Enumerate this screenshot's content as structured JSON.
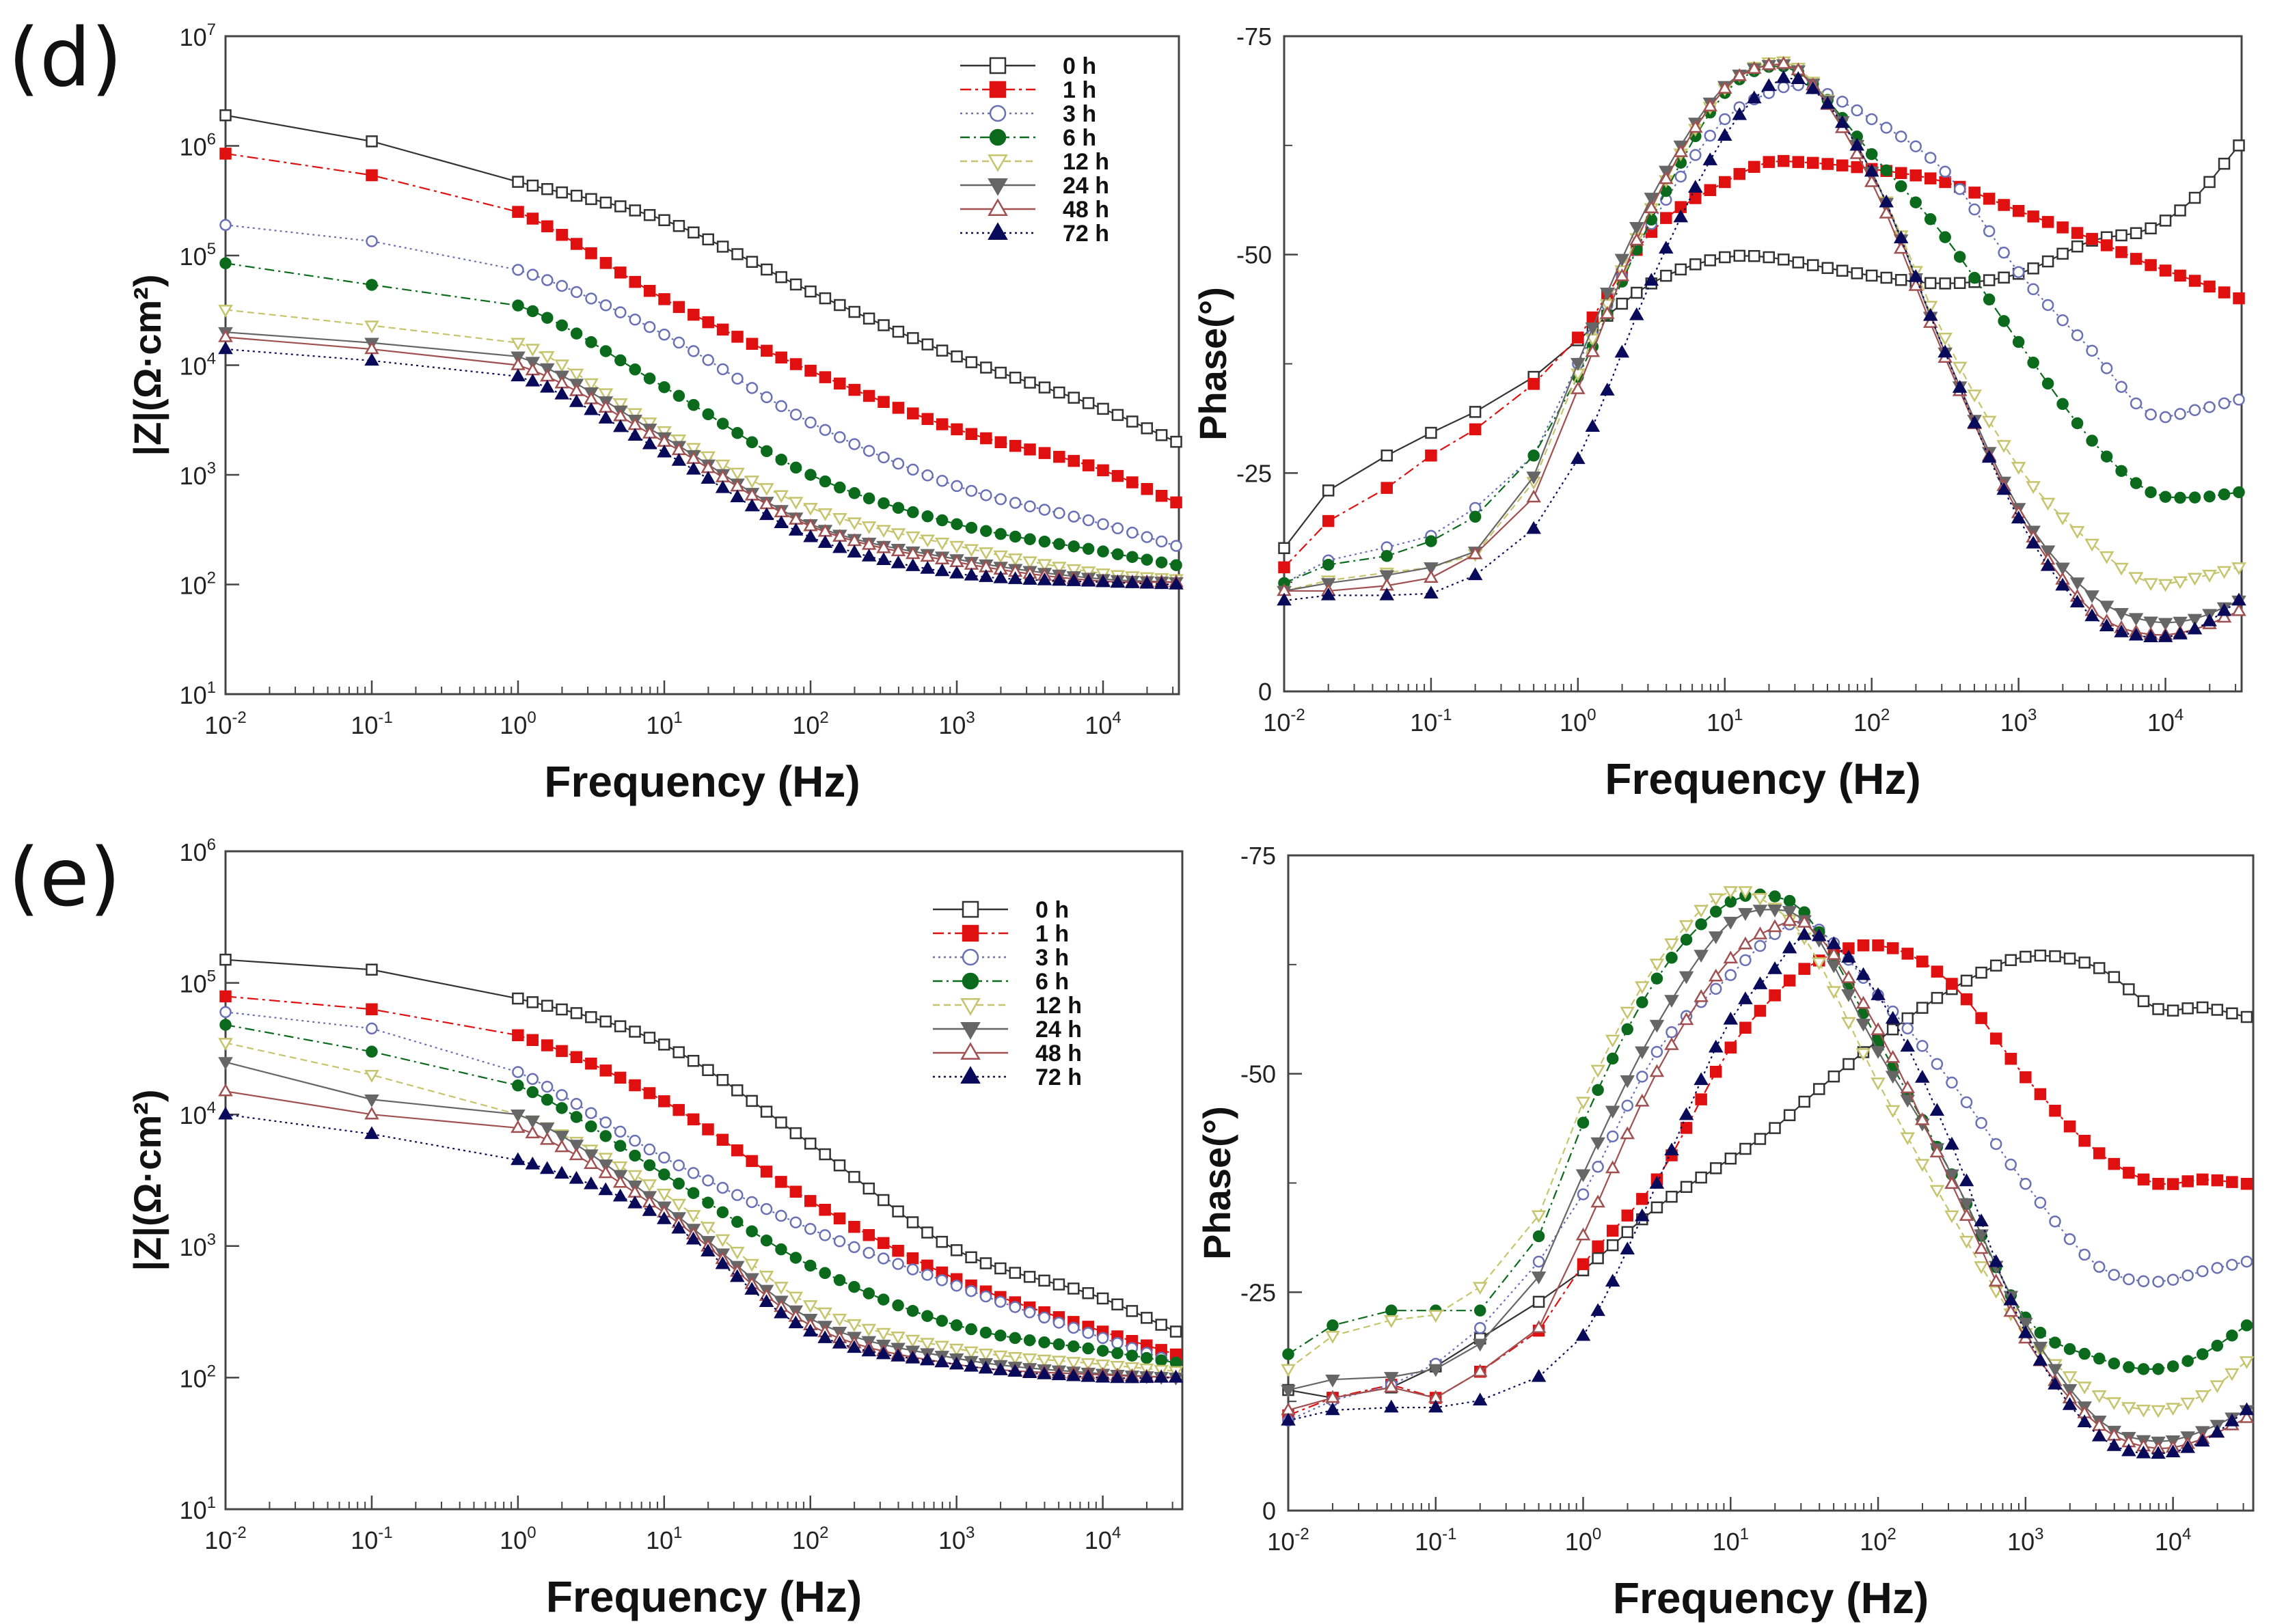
{
  "panel_labels": [
    "(d)",
    "(e)"
  ],
  "chart_data": [
    {
      "panel": "(d)",
      "type": "line",
      "title": "",
      "xlabel": "Frequency (Hz)",
      "ylabel": "|Z|(Ω·cm²)",
      "xscale": "log",
      "yscale": "log",
      "xlim": [
        0.01,
        33000
      ],
      "ylim": [
        10,
        10000000
      ],
      "x_ticks": [
        0.01,
        0.1,
        1,
        10,
        100,
        1000,
        10000
      ],
      "y_ticks": [
        10,
        100,
        1000,
        10000,
        100000,
        1000000,
        10000000
      ],
      "legend_position": "top-right",
      "grid": false,
      "x": [
        0.01,
        0.1,
        1,
        10,
        100,
        1000,
        10000,
        31623
      ],
      "series": [
        {
          "name": "0 h",
          "color": "#333333",
          "values": [
            1900000.0,
            1100000.0,
            470000.0,
            210000.0,
            47000.0,
            12000.0,
            4000.0,
            2000.0
          ]
        },
        {
          "name": "1 h",
          "color": "#e01010",
          "values": [
            850000.0,
            540000.0,
            250000.0,
            40000.0,
            8900.0,
            2600.0,
            1100.0,
            560
          ]
        },
        {
          "name": "3 h",
          "color": "#6a70b4",
          "values": [
            190000.0,
            135000.0,
            74000.0,
            19000.0,
            3000.0,
            790,
            355,
            225
          ]
        },
        {
          "name": "6 h",
          "color": "#0b6a1c",
          "values": [
            85000.0,
            54000.0,
            35000.0,
            6300.0,
            1000.0,
            355,
            200,
            150
          ]
        },
        {
          "name": "12 h",
          "color": "#c6c46c",
          "values": [
            32000.0,
            23000.0,
            16000.0,
            2500.0,
            500,
            225,
            126,
            112
          ]
        },
        {
          "name": "24 h",
          "color": "#666666",
          "values": [
            20000.0,
            16000.0,
            12000.0,
            2200.0,
            355,
            170,
            112,
            105
          ]
        },
        {
          "name": "48 h",
          "color": "#a05050",
          "values": [
            18000.0,
            14000.0,
            10000.0,
            2000.0,
            340,
            160,
            107,
            105
          ]
        },
        {
          "name": "72 h",
          "color": "#0a0a5a",
          "values": [
            14000.0,
            11000.0,
            7900.0,
            1600.0,
            270,
            126,
            105,
            100
          ]
        }
      ]
    },
    {
      "panel": "(d)",
      "type": "line",
      "title": "",
      "xlabel": "Frequency (Hz)",
      "ylabel": "Phase(°)",
      "xscale": "log",
      "yscale": "linear",
      "xlim": [
        0.01,
        33000
      ],
      "ylim": [
        0,
        -75
      ],
      "x_ticks": [
        0.01,
        0.1,
        1,
        10,
        100,
        1000,
        10000
      ],
      "y_ticks": [
        0,
        -25,
        -50,
        -75
      ],
      "grid": false,
      "x": [
        0.01,
        0.02,
        0.05,
        0.1,
        0.2,
        0.5,
        1,
        3.16,
        10,
        20,
        31.6,
        100,
        316,
        1000,
        3162,
        7943,
        15849,
        31623
      ],
      "series": [
        {
          "name": "0 h",
          "color": "#333333",
          "values": [
            -16.4,
            -23,
            -27,
            -29.6,
            -32,
            -36,
            -40.2,
            -46.7,
            -49.7,
            -49.7,
            -49.1,
            -47.6,
            -46.7,
            -47.8,
            -51.6,
            -53,
            -56.5,
            -62.5
          ]
        },
        {
          "name": "1 h",
          "color": "#e01010",
          "values": [
            -14.2,
            -19.5,
            -23.3,
            -27,
            -30,
            -35.2,
            -40.5,
            -52.6,
            -58.3,
            -60.6,
            -60.6,
            -59.8,
            -58.3,
            -55,
            -51.8,
            -48.8,
            -47,
            -45
          ]
        },
        {
          "name": "3 h",
          "color": "#6a70b4",
          "values": [
            -12.4,
            -15,
            -16.5,
            -17.8,
            -21,
            -27,
            -37.5,
            -53.5,
            -65.5,
            -68.5,
            -69.4,
            -65.5,
            -59.5,
            -48,
            -39,
            -31.7,
            -32.2,
            -33.4
          ]
        },
        {
          "name": "6 h",
          "color": "#0b6a1c",
          "values": [
            -12.4,
            -14.5,
            -15.5,
            -17.2,
            -20,
            -27,
            -36,
            -54,
            -68.5,
            -71.5,
            -70.9,
            -61.5,
            -52,
            -40,
            -28.7,
            -22.8,
            -22.2,
            -22.8
          ]
        },
        {
          "name": "12 h",
          "color": "#c6c46c",
          "values": [
            -11.5,
            -12.7,
            -13.6,
            -14.2,
            -15.7,
            -24,
            -36.4,
            -55.3,
            -69,
            -72,
            -71.4,
            -59.5,
            -40.5,
            -25.7,
            -16.9,
            -12.4,
            -13,
            -14.2
          ]
        },
        {
          "name": "24 h",
          "color": "#666666",
          "values": [
            -11.5,
            -12.4,
            -13.3,
            -14.2,
            -16,
            -24.6,
            -37.6,
            -56.5,
            -69.3,
            -71.7,
            -71.1,
            -59.5,
            -38.8,
            -21,
            -11,
            -8,
            -8.3,
            -10.4
          ]
        },
        {
          "name": "48 h",
          "color": "#a05050",
          "values": [
            -11.5,
            -11.5,
            -12.1,
            -13,
            -15.7,
            -22.2,
            -34.6,
            -55.3,
            -69,
            -71.7,
            -71.1,
            -58.3,
            -38.2,
            -20.4,
            -9.2,
            -6.5,
            -7.1,
            -9.2
          ]
        },
        {
          "name": "72 h",
          "color": "#0a0a5a",
          "values": [
            -10.4,
            -11,
            -11,
            -11.2,
            -13.3,
            -18.6,
            -26.6,
            -47,
            -63.6,
            -69.3,
            -70.1,
            -59.5,
            -38.8,
            -19.8,
            -8.6,
            -6.2,
            -7.1,
            -10.4
          ]
        }
      ]
    },
    {
      "panel": "(e)",
      "type": "line",
      "title": "",
      "xlabel": "Frequency (Hz)",
      "ylabel": "|Z|(Ω·cm²)",
      "xscale": "log",
      "yscale": "log",
      "xlim": [
        0.01,
        35000
      ],
      "ylim": [
        10,
        1000000
      ],
      "x_ticks": [
        0.01,
        0.1,
        1,
        10,
        100,
        1000,
        10000
      ],
      "y_ticks": [
        10,
        100,
        1000,
        10000,
        100000,
        1000000
      ],
      "legend_position": "top-right",
      "grid": false,
      "x": [
        0.01,
        0.1,
        1,
        10,
        100,
        1000,
        10000,
        31623
      ],
      "series": [
        {
          "name": "0 h",
          "color": "#333333",
          "values": [
            150000.0,
            126000.0,
            76000.0,
            34000.0,
            6000.0,
            930,
            400,
            224
          ]
        },
        {
          "name": "1 h",
          "color": "#e01010",
          "values": [
            79000.0,
            63000.0,
            40000.0,
            12600.0,
            2200.0,
            560,
            224,
            150
          ]
        },
        {
          "name": "3 h",
          "color": "#6a70b4",
          "values": [
            60000.0,
            45000.0,
            21000.0,
            4700.0,
            1350.0,
            500,
            200,
            130
          ]
        },
        {
          "name": "6 h",
          "color": "#0b6a1c",
          "values": [
            48000.0,
            30000.0,
            16600.0,
            3500.0,
            710,
            250,
            160,
            130
          ]
        },
        {
          "name": "12 h",
          "color": "#c6c46c",
          "values": [
            35000.0,
            20000.0,
            10000.0,
            2500.0,
            355,
            166,
            126,
            112
          ]
        },
        {
          "name": "24 h",
          "color": "#666666",
          "values": [
            25000.0,
            13000.0,
            10000.0,
            2000.0,
            280,
            140,
            107,
            100
          ]
        },
        {
          "name": "48 h",
          "color": "#a05050",
          "values": [
            15000.0,
            10000.0,
            7900.0,
            1800.0,
            250,
            126,
            105,
            100
          ]
        },
        {
          "name": "72 h",
          "color": "#0a0a5a",
          "values": [
            10000.0,
            7100.0,
            4500.0,
            1600.0,
            224,
            126,
            100,
            100
          ]
        }
      ]
    },
    {
      "panel": "(e)",
      "type": "line",
      "title": "",
      "xlabel": "Frequency (Hz)",
      "ylabel": "Phase(°)",
      "xscale": "log",
      "yscale": "linear",
      "xlim": [
        0.01,
        35000
      ],
      "ylim": [
        0,
        -75
      ],
      "x_ticks": [
        0.01,
        0.1,
        1,
        10,
        100,
        1000,
        10000
      ],
      "y_ticks": [
        0,
        -25,
        -50,
        -75
      ],
      "grid": false,
      "x": [
        0.01,
        0.02,
        0.05,
        0.1,
        0.2,
        0.5,
        1,
        3.16,
        10,
        20,
        31.6,
        100,
        316,
        1000,
        3162,
        7943,
        15849,
        31623
      ],
      "series": [
        {
          "name": "0 h",
          "color": "#333333",
          "values": [
            -13.8,
            -12.9,
            -14.1,
            -16.5,
            -19.7,
            -23.9,
            -27.5,
            -34.7,
            -40.3,
            -43.8,
            -46.8,
            -53.8,
            -59.7,
            -63.4,
            -62.1,
            -57.4,
            -57.6,
            -56.5
          ]
        },
        {
          "name": "1 h",
          "color": "#e01010",
          "values": [
            -10.9,
            -12.9,
            -14.4,
            -12.9,
            -15.9,
            -20.6,
            -28.2,
            -37.9,
            -53,
            -59,
            -62,
            -64.7,
            -60.3,
            -49.6,
            -40.9,
            -37.4,
            -37.9,
            -37.4
          ]
        },
        {
          "name": "3 h",
          "color": "#6a70b4",
          "values": [
            -10.3,
            -12.6,
            -14.4,
            -16.8,
            -20.9,
            -28.5,
            -36.2,
            -52.5,
            -61.3,
            -66,
            -67.4,
            -59,
            -49,
            -37.4,
            -27.9,
            -26.2,
            -27.4,
            -28.5
          ]
        },
        {
          "name": "6 h",
          "color": "#0b6a1c",
          "values": [
            -17.9,
            -21.2,
            -22.9,
            -22.9,
            -22.9,
            -31.4,
            -44.4,
            -60.9,
            -69.7,
            -70.3,
            -68.5,
            -53.8,
            -38.5,
            -22.1,
            -17.4,
            -16.2,
            -17.9,
            -21.2
          ]
        },
        {
          "name": "12 h",
          "color": "#c6c46c",
          "values": [
            -16.2,
            -20,
            -21.8,
            -22.4,
            -25.6,
            -33.8,
            -46.8,
            -62.6,
            -70.9,
            -69,
            -65.6,
            -49,
            -33.8,
            -20.3,
            -13.2,
            -11.5,
            -13.2,
            -17.1
          ]
        },
        {
          "name": "24 h",
          "color": "#666666",
          "values": [
            -13.8,
            -15,
            -15.3,
            -16.2,
            -19.1,
            -26.8,
            -38.5,
            -55.6,
            -67.4,
            -68.8,
            -67.6,
            -52.6,
            -38.5,
            -21.5,
            -10.3,
            -7.9,
            -9.1,
            -11.5
          ]
        },
        {
          "name": "48 h",
          "color": "#a05050",
          "values": [
            -11.5,
            -12.9,
            -14.1,
            -12.9,
            -15.9,
            -20.9,
            -31.5,
            -50.2,
            -63.2,
            -66.8,
            -67.3,
            -55,
            -37.4,
            -19.7,
            -9.7,
            -7.1,
            -8.2,
            -10.6
          ]
        },
        {
          "name": "72 h",
          "color": "#0a0a5a",
          "values": [
            -10.3,
            -11.5,
            -11.8,
            -11.8,
            -12.6,
            -15.3,
            -20,
            -37.4,
            -56.2,
            -62,
            -65.9,
            -59,
            -41.9,
            -20.3,
            -8.5,
            -6.5,
            -7.9,
            -11.5
          ]
        }
      ]
    }
  ]
}
